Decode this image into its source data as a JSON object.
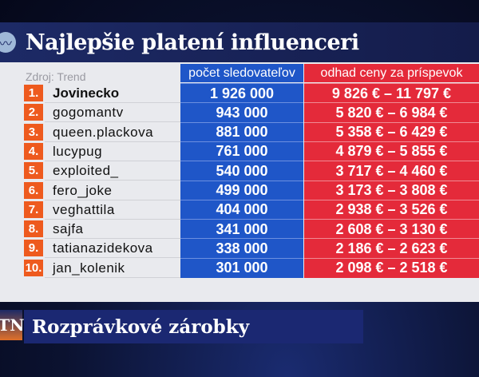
{
  "header": {
    "title": "Najlepšie platení influenceri",
    "logo_icon": "broadcaster-logo-icon"
  },
  "table": {
    "source": "Zdroj: Trend",
    "columns": [
      "počet sledovateľov",
      "odhad ceny za príspevok"
    ],
    "rows": [
      {
        "rank": "1.",
        "name": "Jovinecko",
        "followers": "1 926 000",
        "price": "9 826 € – 11 797 €"
      },
      {
        "rank": "2.",
        "name": "gogomantv",
        "followers": "943 000",
        "price": "5 820 € – 6 984 €"
      },
      {
        "rank": "3.",
        "name": "queen.plackova",
        "followers": "881 000",
        "price": "5 358 € – 6 429 €"
      },
      {
        "rank": "4.",
        "name": "lucypug",
        "followers": "761 000",
        "price": "4 879 € – 5 855 €"
      },
      {
        "rank": "5.",
        "name": "exploited_",
        "followers": "540 000",
        "price": "3 717 € – 4 460 €"
      },
      {
        "rank": "6.",
        "name": "fero_joke",
        "followers": "499 000",
        "price": "3 173 € – 3 808 €"
      },
      {
        "rank": "7.",
        "name": "veghattila",
        "followers": "404 000",
        "price": "2 938 € – 3 526 €"
      },
      {
        "rank": "8.",
        "name": "sajfa",
        "followers": "341 000",
        "price": "2 608 € – 3 130 €"
      },
      {
        "rank": "9.",
        "name": "tatianazidekova",
        "followers": "338 000",
        "price": "2 186 € – 2 623 €"
      },
      {
        "rank": "10.",
        "name": "jan_kolenik",
        "followers": "301 000",
        "price": "2 098 € – 2 518 €"
      }
    ]
  },
  "footer": {
    "channel_logo": "TN",
    "title": "Rozprávkové zárobky"
  },
  "colors": {
    "navy": "#1d2a66",
    "blue": "#1f56c8",
    "red": "#e42a3a",
    "orange": "#ee5a1e"
  }
}
